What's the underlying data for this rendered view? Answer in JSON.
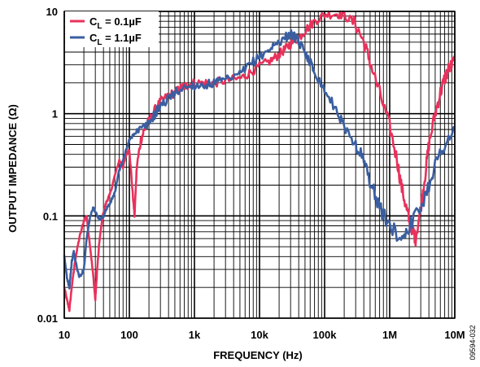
{
  "chart_data": {
    "type": "line",
    "title": "",
    "xlabel": "FREQUENCY (Hz)",
    "ylabel": "OUTPUT IMPEDANCE (Ω)",
    "x_scale": "log",
    "y_scale": "log",
    "xlim": [
      10,
      10000000
    ],
    "ylim": [
      0.01,
      10
    ],
    "grid": true,
    "legend_position": "top-left",
    "x_ticks": [
      {
        "value": 10,
        "label": "10"
      },
      {
        "value": 100,
        "label": "100"
      },
      {
        "value": 1000,
        "label": "1k"
      },
      {
        "value": 10000,
        "label": "10k"
      },
      {
        "value": 100000,
        "label": "100k"
      },
      {
        "value": 1000000,
        "label": "1M"
      },
      {
        "value": 10000000,
        "label": "10M"
      }
    ],
    "y_ticks": [
      {
        "value": 0.01,
        "label": "0.01"
      },
      {
        "value": 0.1,
        "label": "0.1"
      },
      {
        "value": 1,
        "label": "1"
      },
      {
        "value": 10,
        "label": "10"
      }
    ],
    "figure_id": "09594-032",
    "series": [
      {
        "name": "C_L = 0.1µF",
        "legend_main": "C",
        "legend_sub": "L",
        "legend_rest": " = 0.1µF",
        "color": "#e8315b",
        "x": [
          10,
          11,
          12,
          13,
          15,
          17,
          20,
          22,
          25,
          28,
          30,
          32,
          35,
          40,
          45,
          50,
          60,
          70,
          80,
          90,
          100,
          110,
          120,
          130,
          150,
          170,
          200,
          250,
          300,
          400,
          500,
          600,
          700,
          800,
          1000,
          1500,
          2000,
          3000,
          5000,
          7000,
          10000,
          15000,
          20000,
          25000,
          30000,
          40000,
          50000,
          70000,
          100000,
          150000,
          200000,
          300000,
          400000,
          500000,
          700000,
          1000000,
          1300000,
          1500000,
          1800000,
          2000000,
          2300000,
          2500000,
          3000000,
          3500000,
          4000000,
          5000000,
          6000000,
          7000000,
          8000000,
          10000000
        ],
        "y": [
          0.02,
          0.015,
          0.012,
          0.02,
          0.04,
          0.06,
          0.09,
          0.1,
          0.05,
          0.025,
          0.015,
          0.03,
          0.06,
          0.11,
          0.14,
          0.16,
          0.25,
          0.35,
          0.3,
          0.4,
          0.45,
          0.2,
          0.1,
          0.3,
          0.55,
          0.7,
          0.85,
          1.1,
          1.3,
          1.5,
          1.6,
          1.75,
          1.85,
          1.9,
          2.0,
          2.0,
          2.0,
          2.1,
          2.2,
          2.5,
          2.9,
          3.3,
          3.8,
          4.3,
          4.8,
          5.5,
          6.5,
          8.0,
          9.3,
          9.5,
          9.2,
          7.5,
          5.0,
          3.2,
          1.6,
          0.75,
          0.35,
          0.2,
          0.12,
          0.09,
          0.07,
          0.06,
          0.12,
          0.25,
          0.5,
          1.0,
          1.6,
          2.2,
          2.7,
          3.3
        ]
      },
      {
        "name": "C_L = 1.1µF",
        "legend_main": "C",
        "legend_sub": "L",
        "legend_rest": " = 1.1µF",
        "color": "#3a5ea0",
        "x": [
          10,
          11,
          12,
          13,
          14,
          15,
          17,
          20,
          22,
          25,
          28,
          30,
          35,
          40,
          45,
          50,
          60,
          70,
          80,
          90,
          100,
          120,
          150,
          200,
          250,
          300,
          400,
          500,
          700,
          1000,
          1500,
          2000,
          3000,
          5000,
          7000,
          10000,
          15000,
          20000,
          25000,
          30000,
          35000,
          40000,
          50000,
          60000,
          70000,
          100000,
          150000,
          200000,
          300000,
          400000,
          500000,
          700000,
          1000000,
          1500000,
          2000000,
          3000000,
          4000000,
          5000000,
          7000000,
          10000000
        ],
        "y": [
          0.04,
          0.025,
          0.02,
          0.035,
          0.045,
          0.035,
          0.025,
          0.03,
          0.06,
          0.1,
          0.12,
          0.11,
          0.09,
          0.1,
          0.12,
          0.13,
          0.17,
          0.28,
          0.35,
          0.45,
          0.55,
          0.65,
          0.7,
          0.8,
          1.0,
          1.2,
          1.4,
          1.6,
          1.8,
          1.9,
          1.9,
          2.0,
          2.1,
          2.4,
          3.0,
          3.6,
          4.4,
          5.0,
          5.6,
          6.0,
          5.6,
          5.0,
          4.0,
          3.2,
          2.6,
          1.7,
          1.1,
          0.75,
          0.5,
          0.35,
          0.22,
          0.12,
          0.08,
          0.06,
          0.08,
          0.12,
          0.2,
          0.32,
          0.5,
          0.7
        ]
      }
    ]
  }
}
